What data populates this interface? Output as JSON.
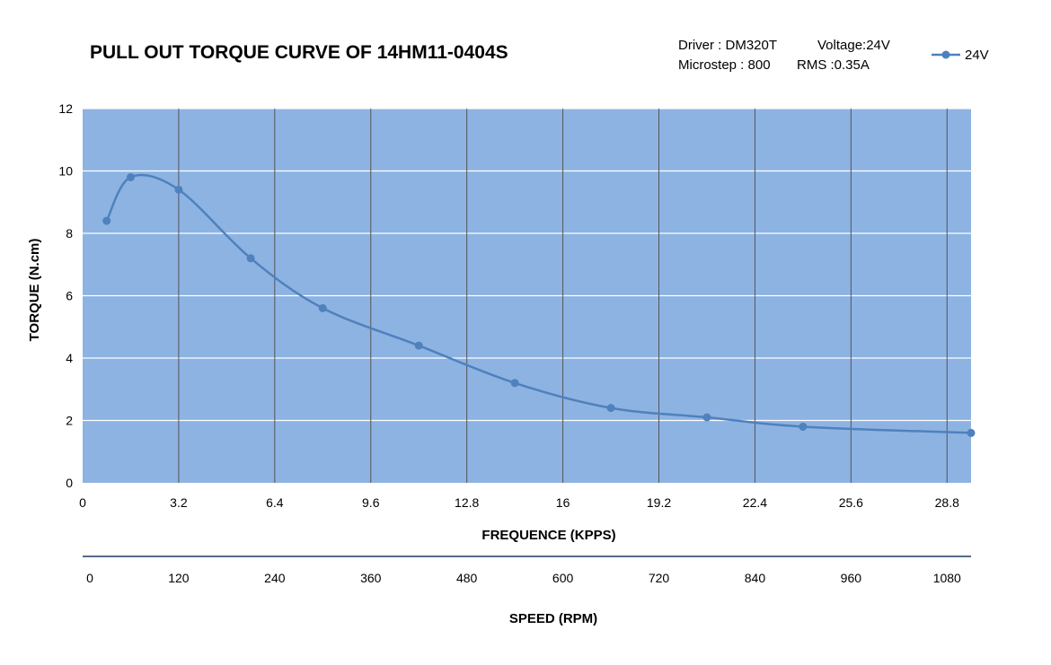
{
  "header": {
    "title": "PULL OUT TORQUE CURVE OF 14HM11-0404S",
    "driver": "Driver : DM320T",
    "voltage": "Voltage:24V",
    "microstep": "Microstep : 800",
    "rms": "RMS :0.35A"
  },
  "colors": {
    "plot_background": "#8db3e2",
    "series": "#4f81bd",
    "gridline_horizontal": "#ffffff",
    "gridline_vertical": "#555555",
    "speed_axis_line": "#1f3864"
  },
  "chart_data": {
    "type": "line",
    "title": "PULL OUT TORQUE CURVE OF 14HM11-0404S",
    "xlabel": "FREQUENCE (KPPS)",
    "ylabel": "TORQUE (N.cm)",
    "secondary_xlabel": "SPEED (RPM)",
    "xlim": [
      0,
      29.6
    ],
    "ylim": [
      0,
      12
    ],
    "x_ticks": [
      "0",
      "3.2",
      "6.4",
      "9.6",
      "12.8",
      "16",
      "19.2",
      "22.4",
      "25.6",
      "28.8"
    ],
    "x_tick_values": [
      0,
      3.2,
      6.4,
      9.6,
      12.8,
      16,
      19.2,
      22.4,
      25.6,
      28.8
    ],
    "y_ticks": [
      "0",
      "2",
      "4",
      "6",
      "8",
      "10",
      "12"
    ],
    "y_tick_values": [
      0,
      2,
      4,
      6,
      8,
      10,
      12
    ],
    "secondary_x_ticks": [
      "0",
      "120",
      "240",
      "360",
      "480",
      "600",
      "720",
      "840",
      "960",
      "1080"
    ],
    "grid": true,
    "legend_position": "top-right",
    "series": [
      {
        "name": "24V",
        "x": [
          0.8,
          1.6,
          3.2,
          5.6,
          8.0,
          11.2,
          14.4,
          17.6,
          20.8,
          24.0,
          29.6
        ],
        "values": [
          8.4,
          9.8,
          9.4,
          7.2,
          5.6,
          4.4,
          3.2,
          2.4,
          2.1,
          1.8,
          1.6
        ]
      }
    ]
  }
}
